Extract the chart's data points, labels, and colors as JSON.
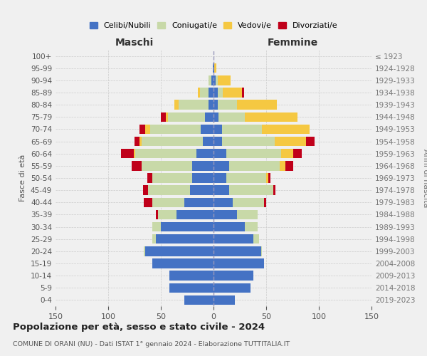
{
  "age_groups": [
    "0-4",
    "5-9",
    "10-14",
    "15-19",
    "20-24",
    "25-29",
    "30-34",
    "35-39",
    "40-44",
    "45-49",
    "50-54",
    "55-59",
    "60-64",
    "65-69",
    "70-74",
    "75-79",
    "80-84",
    "85-89",
    "90-94",
    "95-99",
    "100+"
  ],
  "birth_years": [
    "2019-2023",
    "2014-2018",
    "2009-2013",
    "2004-2008",
    "1999-2003",
    "1994-1998",
    "1989-1993",
    "1984-1988",
    "1979-1983",
    "1974-1978",
    "1969-1973",
    "1964-1968",
    "1959-1963",
    "1954-1958",
    "1949-1953",
    "1944-1948",
    "1939-1943",
    "1934-1938",
    "1929-1933",
    "1924-1928",
    "≤ 1923"
  ],
  "maschi": {
    "celibi": [
      28,
      42,
      42,
      58,
      65,
      55,
      50,
      35,
      28,
      22,
      20,
      20,
      16,
      10,
      12,
      8,
      5,
      5,
      2,
      1,
      0
    ],
    "coniugati": [
      0,
      0,
      0,
      0,
      1,
      3,
      8,
      18,
      30,
      40,
      38,
      48,
      58,
      58,
      48,
      35,
      28,
      8,
      3,
      0,
      0
    ],
    "vedovi": [
      0,
      0,
      0,
      0,
      0,
      0,
      0,
      0,
      0,
      0,
      0,
      0,
      2,
      2,
      5,
      2,
      4,
      2,
      0,
      0,
      0
    ],
    "divorziati": [
      0,
      0,
      0,
      0,
      0,
      0,
      0,
      2,
      8,
      5,
      5,
      10,
      12,
      5,
      5,
      5,
      0,
      0,
      0,
      0,
      0
    ]
  },
  "femmine": {
    "nubili": [
      20,
      35,
      38,
      48,
      45,
      38,
      30,
      22,
      18,
      15,
      12,
      15,
      12,
      8,
      8,
      5,
      4,
      4,
      2,
      1,
      0
    ],
    "coniugate": [
      0,
      0,
      0,
      0,
      1,
      5,
      12,
      20,
      30,
      42,
      38,
      48,
      52,
      50,
      38,
      25,
      18,
      5,
      2,
      0,
      0
    ],
    "vedove": [
      0,
      0,
      0,
      0,
      0,
      0,
      0,
      0,
      0,
      0,
      2,
      5,
      12,
      30,
      45,
      50,
      38,
      18,
      12,
      2,
      0
    ],
    "divorziate": [
      0,
      0,
      0,
      0,
      0,
      0,
      0,
      0,
      2,
      2,
      2,
      8,
      8,
      8,
      0,
      0,
      0,
      2,
      0,
      0,
      0
    ]
  },
  "colors": {
    "celibi": "#4472c4",
    "coniugati": "#c8d9a8",
    "vedovi": "#f5c842",
    "divorziati": "#c0001a"
  },
  "xlim": 150,
  "title": "Popolazione per età, sesso e stato civile - 2024",
  "subtitle": "COMUNE DI ORANI (NU) - Dati ISTAT 1° gennaio 2024 - Elaborazione TUTTITALIA.IT",
  "ylabel_left": "Fasce di età",
  "ylabel_right": "Anni di nascita",
  "xlabel_maschi": "Maschi",
  "xlabel_femmine": "Femmine",
  "bg_color": "#f0f0f0",
  "legend_labels": [
    "Celibi/Nubili",
    "Coniugati/e",
    "Vedovi/e",
    "Divorziati/e"
  ]
}
